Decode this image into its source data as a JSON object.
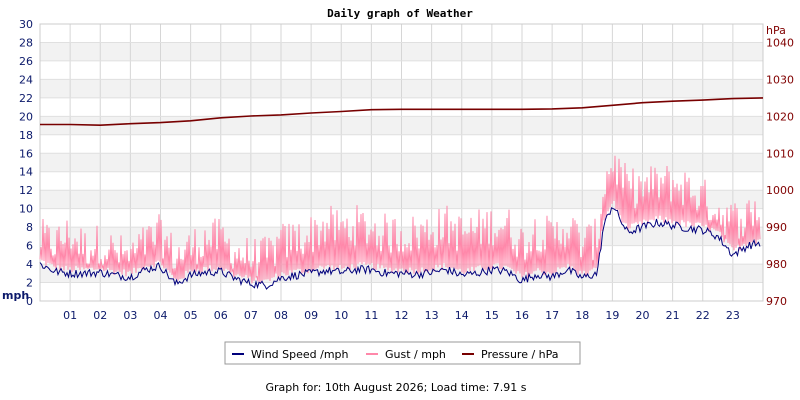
{
  "chart_data": {
    "type": "line",
    "title": "Daily graph of Weather",
    "left_axis": {
      "unit": "mph",
      "ylim": [
        0,
        30
      ],
      "ticks": [
        0,
        2,
        4,
        6,
        8,
        10,
        12,
        14,
        16,
        18,
        20,
        22,
        24,
        26,
        28,
        30
      ]
    },
    "right_axis": {
      "unit": "hPa",
      "ylim": [
        970,
        1045
      ],
      "ticks": [
        970,
        980,
        990,
        1000,
        1010,
        1020,
        1030,
        1040
      ]
    },
    "x_axis": {
      "unit": "hour",
      "xlim": [
        0,
        24
      ],
      "tick_labels": [
        "01",
        "02",
        "03",
        "04",
        "05",
        "06",
        "07",
        "08",
        "09",
        "10",
        "11",
        "12",
        "13",
        "14",
        "15",
        "16",
        "17",
        "18",
        "19",
        "20",
        "21",
        "22",
        "23"
      ]
    },
    "grid": true,
    "legend_position": "bottom-center",
    "series": [
      {
        "name": "Wind Speed /mph",
        "axis": "left",
        "color": "#00007b",
        "x": [
          0,
          0.5,
          1,
          1.5,
          2,
          2.5,
          3,
          3.5,
          4,
          4.5,
          5,
          5.5,
          6,
          6.5,
          7,
          7.5,
          8,
          8.5,
          9,
          9.5,
          10,
          10.5,
          11,
          11.5,
          12,
          12.5,
          13,
          13.5,
          14,
          14.5,
          15,
          15.5,
          16,
          16.5,
          17,
          17.5,
          18,
          18.5,
          18.7,
          19,
          19.5,
          20,
          20.5,
          21,
          21.5,
          22,
          22.5,
          23,
          23.5,
          23.9
        ],
        "values": [
          4.0,
          3.2,
          3.0,
          3.0,
          3.1,
          2.8,
          2.6,
          3.4,
          3.8,
          1.8,
          2.8,
          3.1,
          3.2,
          2.4,
          1.9,
          1.7,
          2.5,
          2.8,
          3.0,
          3.3,
          3.1,
          3.4,
          3.4,
          3.0,
          3.0,
          2.9,
          3.1,
          3.4,
          2.8,
          3.0,
          3.4,
          3.2,
          2.2,
          2.9,
          2.6,
          3.4,
          2.5,
          3.0,
          8.0,
          10.4,
          7.4,
          8.0,
          8.5,
          8.2,
          7.9,
          7.7,
          7.0,
          5.0,
          6.0,
          6.3
        ]
      },
      {
        "name": "Gust / mph",
        "axis": "left",
        "color": "#ff88aa",
        "x": [
          0,
          0.5,
          1,
          1.5,
          2,
          2.5,
          3,
          3.5,
          4,
          4.5,
          5,
          5.5,
          6,
          6.5,
          7,
          7.5,
          8,
          8.5,
          9,
          9.5,
          10,
          10.5,
          11,
          11.5,
          12,
          12.5,
          13,
          13.5,
          14,
          14.5,
          15,
          15.5,
          16,
          16.5,
          17,
          17.5,
          18,
          18.5,
          18.7,
          19,
          19.5,
          20,
          20.5,
          21,
          21.5,
          22,
          22.5,
          23,
          23.5,
          23.9
        ],
        "values": [
          6.5,
          6.0,
          7.0,
          5.5,
          6.0,
          5.0,
          4.5,
          6.0,
          7.0,
          4.5,
          5.5,
          6.5,
          6.5,
          5.0,
          4.5,
          4.5,
          6.0,
          6.5,
          7.0,
          8.0,
          7.5,
          8.0,
          7.5,
          7.0,
          7.0,
          7.0,
          7.5,
          8.0,
          7.0,
          7.5,
          8.0,
          8.0,
          6.0,
          7.5,
          6.5,
          8.0,
          6.0,
          6.5,
          12.0,
          15.0,
          12.0,
          12.0,
          12.5,
          12.5,
          12.0,
          11.0,
          9.5,
          8.5,
          9.0,
          10.0
        ]
      },
      {
        "name": "Pressure / hPa",
        "axis": "right",
        "color": "#780000",
        "x": [
          0,
          1,
          2,
          3,
          4,
          5,
          6,
          7,
          8,
          9,
          10,
          11,
          12,
          13,
          14,
          15,
          16,
          17,
          18,
          19,
          20,
          21,
          22,
          23,
          24
        ],
        "values": [
          1017.8,
          1017.8,
          1017.6,
          1018.0,
          1018.3,
          1018.8,
          1019.6,
          1020.1,
          1020.4,
          1020.9,
          1021.3,
          1021.8,
          1021.9,
          1021.9,
          1021.9,
          1021.9,
          1021.9,
          1022.0,
          1022.3,
          1023.0,
          1023.7,
          1024.1,
          1024.4,
          1024.8,
          1025.0
        ]
      }
    ]
  },
  "legend": [
    {
      "label": "Wind Speed /mph",
      "color": "#00007b"
    },
    {
      "label": "Gust / mph",
      "color": "#ff88aa"
    },
    {
      "label": "Pressure / hPa",
      "color": "#780000"
    }
  ],
  "footer": "Graph for: 10th August 2026; Load time: 7.91 s"
}
